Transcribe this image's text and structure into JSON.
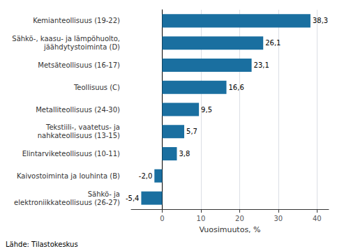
{
  "chart_data": {
    "type": "bar",
    "orientation": "horizontal",
    "categories": [
      "Sähkö- ja\nelektroniikkateollisuus (26-27)",
      "Kaivostoiminta ja louhinta (B)",
      "Elintarviketeollisuus (10-11)",
      "Tekstiili-, vaatetus- ja\nnahkateollisuus (13-15)",
      "Metalliteollisuus (24-30)",
      "Teollisuus (C)",
      "Metsäteollisuus (16-17)",
      "Sähkö-, kaasu- ja lämpöhuolto,\njäähdytystoiminta (D)",
      "Kemianteollisuus (19-22)"
    ],
    "values": [
      -5.4,
      -2.0,
      3.8,
      5.7,
      9.5,
      16.6,
      23.1,
      26.1,
      38.3
    ],
    "value_labels": [
      "-5,4",
      "-2,0",
      "3,8",
      "5,7",
      "9,5",
      "16,6",
      "23,1",
      "26,1",
      "38,3"
    ],
    "data_labels": true,
    "color": "#1a6fa0",
    "xlabel": "Vuosimuutos, %",
    "xlim": [
      -8,
      43
    ],
    "xticks": [
      0,
      10,
      20,
      30,
      40
    ],
    "grid": true,
    "source": "Lähde: Tilastokeskus"
  }
}
